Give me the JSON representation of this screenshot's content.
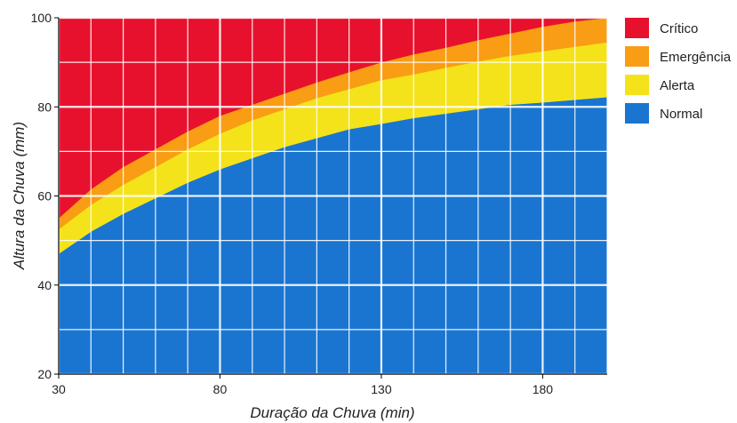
{
  "chart_data": {
    "type": "area",
    "xlabel": "Duração da Chuva (min)",
    "ylabel": "Altura da Chuva (mm)",
    "xlim": [
      30,
      200
    ],
    "ylim": [
      20,
      100
    ],
    "xticks": [
      30,
      80,
      130,
      180
    ],
    "yticks": [
      20,
      40,
      60,
      80,
      100
    ],
    "grid": true,
    "legend_position": "right",
    "x": [
      30,
      40,
      50,
      60,
      70,
      80,
      90,
      100,
      110,
      120,
      130,
      140,
      150,
      160,
      170,
      180,
      190,
      200
    ],
    "series": [
      {
        "name": "Normal",
        "color": "#1a75d1",
        "upper": [
          47,
          52,
          56,
          59.5,
          63,
          66,
          68.5,
          71,
          73,
          75,
          76.2,
          77.5,
          78.5,
          79.5,
          80.5,
          81,
          81.6,
          82.2
        ]
      },
      {
        "name": "Alerta",
        "color": "#f4e31a",
        "upper": [
          52.5,
          58,
          62.5,
          66.5,
          70.5,
          74,
          77,
          79.5,
          82,
          84,
          86,
          87.3,
          88.8,
          90.2,
          91.5,
          92.5,
          93.5,
          94.5
        ]
      },
      {
        "name": "Emergência",
        "color": "#f99d14",
        "upper": [
          55,
          61.5,
          66.5,
          70.5,
          74.5,
          78,
          80.5,
          83,
          85.5,
          87.8,
          90,
          91.8,
          93.3,
          95,
          96.5,
          98,
          99.2,
          100
        ]
      },
      {
        "name": "Crítico",
        "color": "#e8112d",
        "upper": [
          100,
          100,
          100,
          100,
          100,
          100,
          100,
          100,
          100,
          100,
          100,
          100,
          100,
          100,
          100,
          100,
          100,
          100
        ]
      }
    ],
    "legend": [
      "Crítico",
      "Emergência",
      "Alerta",
      "Normal"
    ]
  }
}
